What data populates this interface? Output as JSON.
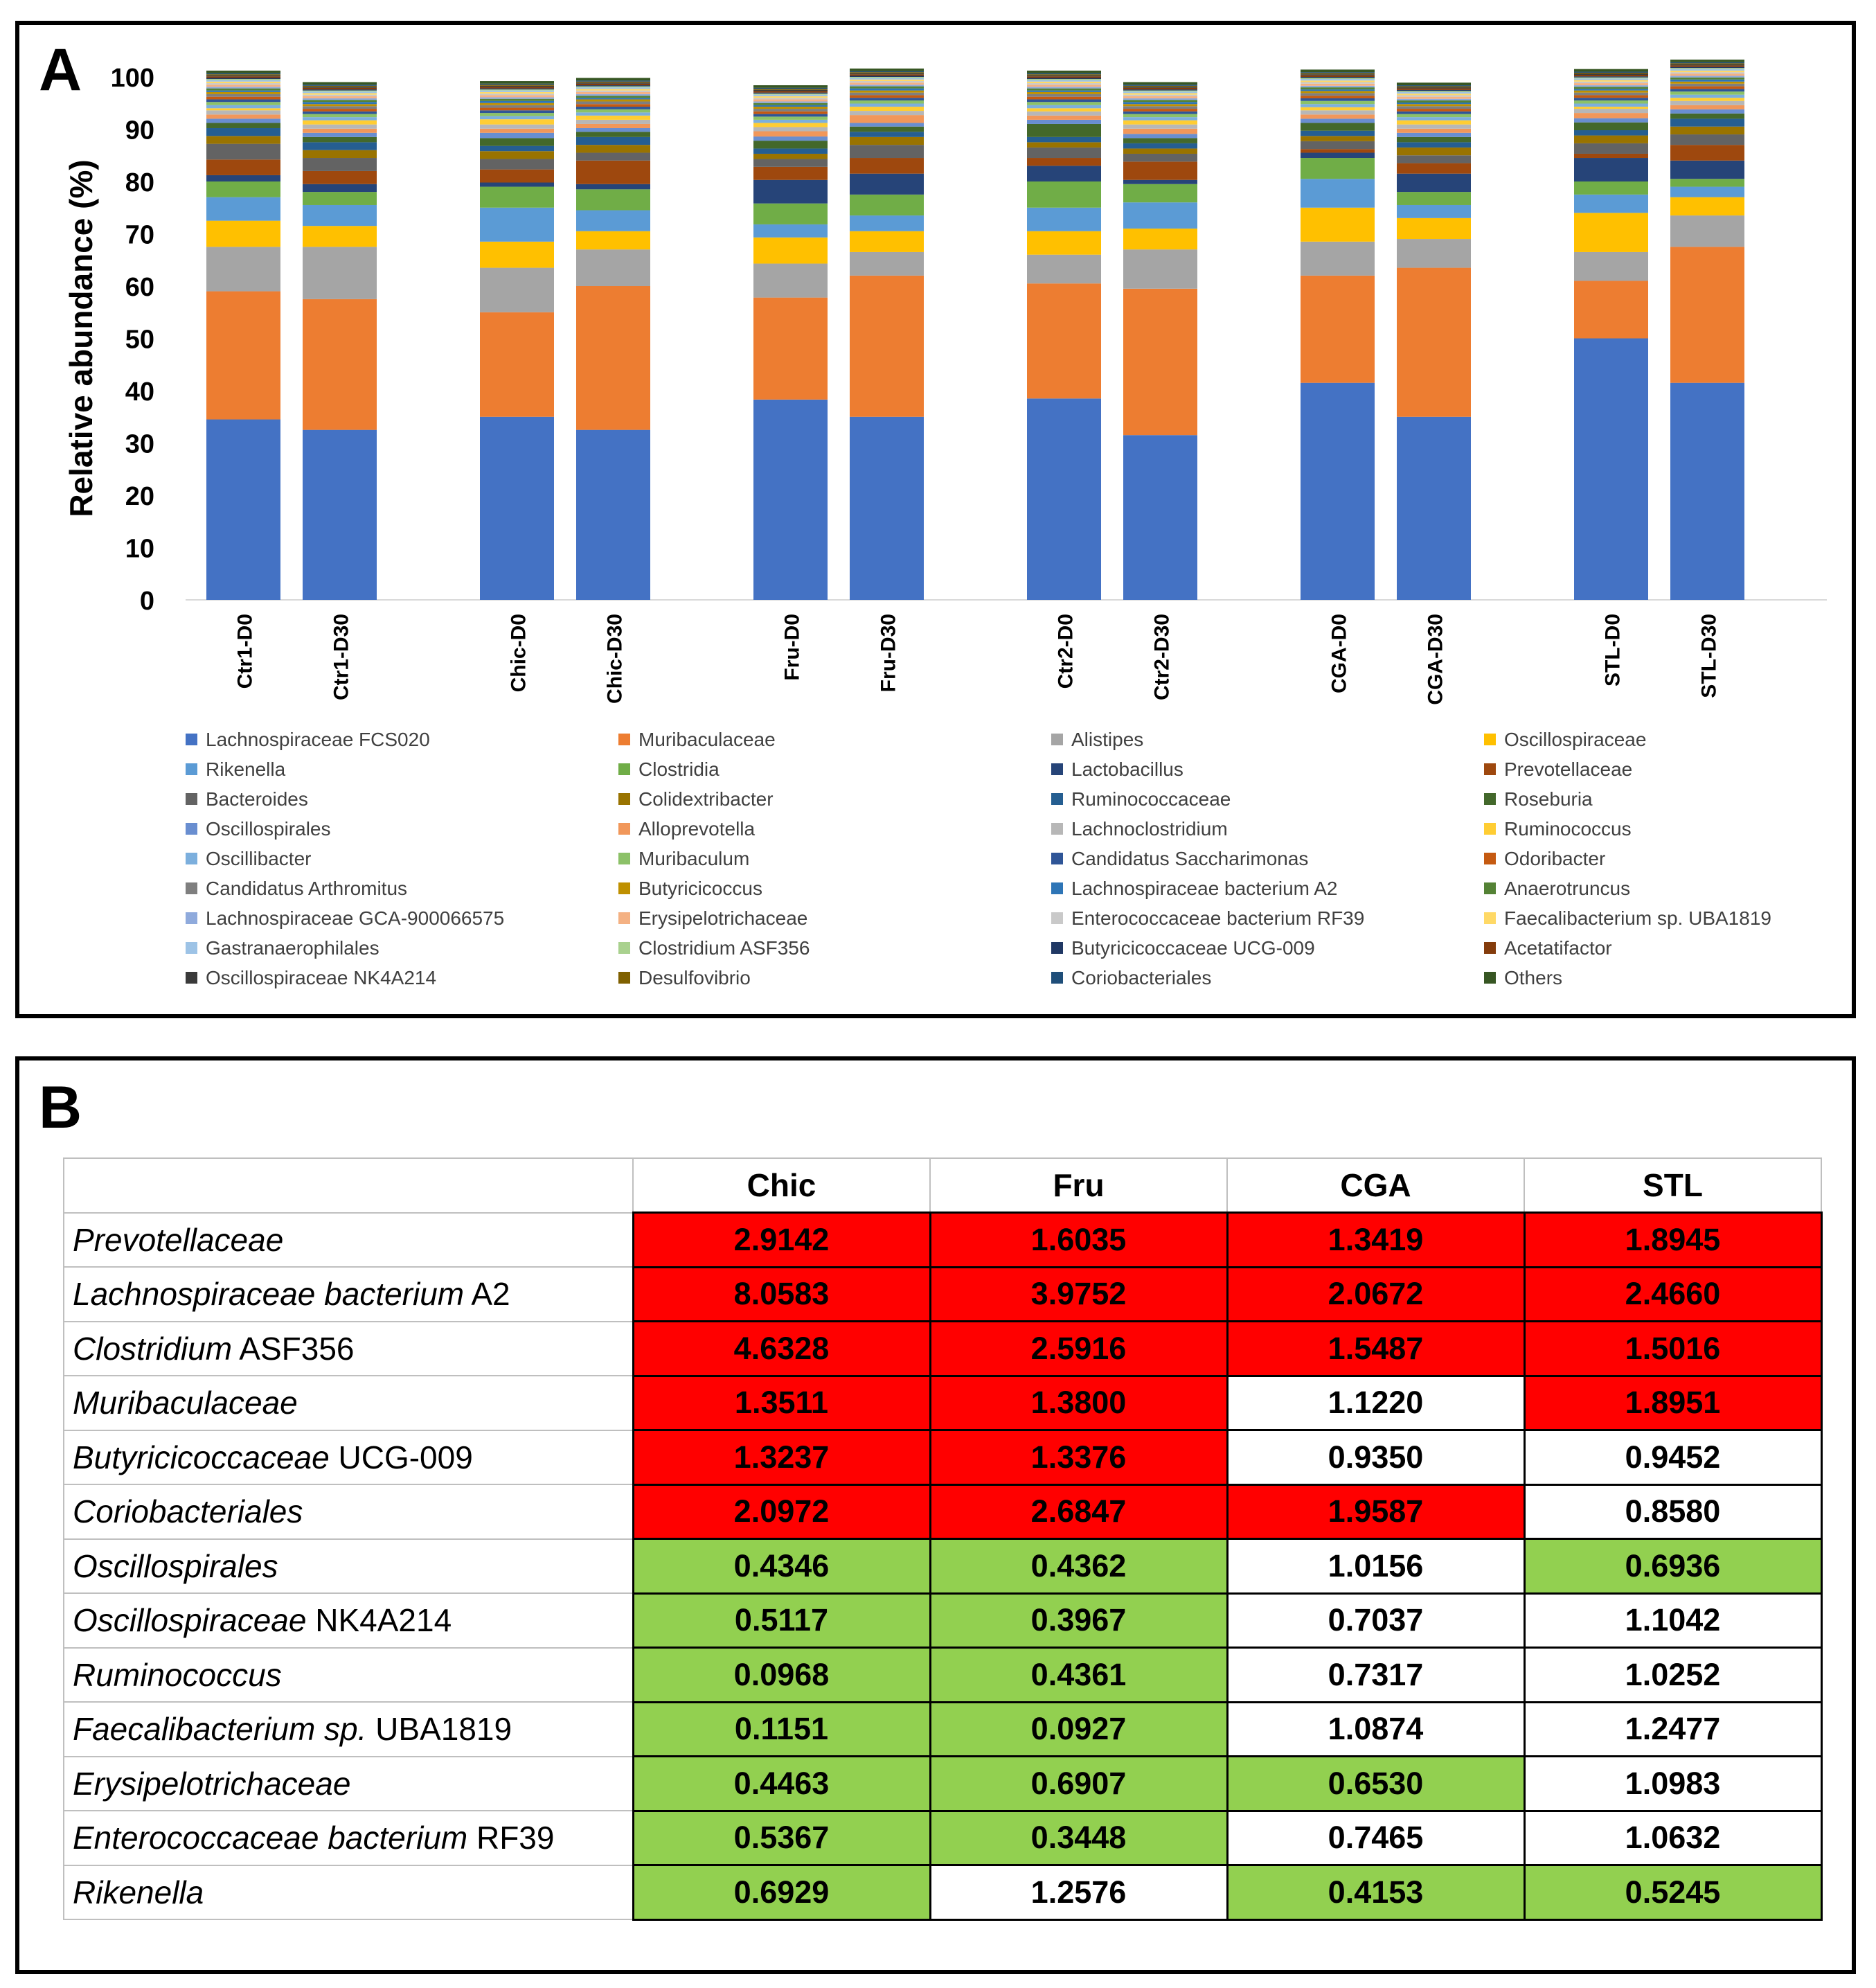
{
  "panelA": {
    "label": "A",
    "chart_data": {
      "type": "bar",
      "stacked": true,
      "ylabel": "Relative abundance (%)",
      "xlabel": "",
      "ylim": [
        0,
        100
      ],
      "yticks": [
        "0",
        "10",
        "20",
        "30",
        "40",
        "50",
        "60",
        "70",
        "80",
        "90",
        "100"
      ],
      "grid": false,
      "legend_position": "bottom",
      "categories": [
        "Ctr1-D0",
        "Ctr1-D30",
        "Chic-D0",
        "Chic-D30",
        "Fru-D0",
        "Fru-D30",
        "Ctr2-D0",
        "Ctr2-D30",
        "CGA-D0",
        "CGA-D30",
        "STL-D0",
        "STL-D30"
      ],
      "groups": [
        [
          "Ctr1-D0",
          "Ctr1-D30"
        ],
        [
          "Chic-D0",
          "Chic-D30"
        ],
        [
          "Fru-D0",
          "Fru-D30"
        ],
        [
          "Ctr2-D0",
          "Ctr2-D30"
        ],
        [
          "CGA-D0",
          "CGA-D30"
        ],
        [
          "STL-D0",
          "STL-D30"
        ]
      ],
      "series": [
        {
          "name": "Lachnospiraceae FCS020",
          "color": "#4472C4",
          "values": [
            34.5,
            32.5,
            35,
            32.5,
            38.3,
            35,
            38.5,
            31.5,
            41.5,
            35,
            50,
            41.5
          ]
        },
        {
          "name": "Muribaculaceae",
          "color": "#ED7D31",
          "values": [
            24.5,
            25,
            20,
            27.5,
            19.5,
            27,
            22,
            28,
            20.5,
            28.5,
            11,
            26
          ]
        },
        {
          "name": "Alistipes",
          "color": "#A5A5A5",
          "values": [
            8.5,
            10,
            8.5,
            7,
            6.5,
            4.5,
            5.5,
            7.5,
            6.5,
            5.5,
            5.5,
            6
          ]
        },
        {
          "name": "Oscillospiraceae",
          "color": "#FFC000",
          "values": [
            5,
            4,
            5,
            3.5,
            5,
            4,
            4.5,
            4,
            6.5,
            4,
            7.5,
            3.5
          ]
        },
        {
          "name": "Rikenella",
          "color": "#5B9BD5",
          "values": [
            4.5,
            4,
            6.5,
            4,
            2.5,
            3,
            4.5,
            5,
            5.5,
            2.5,
            3.5,
            2
          ]
        },
        {
          "name": "Clostridia",
          "color": "#70AD47",
          "values": [
            3,
            2.5,
            4,
            4,
            4,
            4,
            5,
            3.5,
            4,
            2.5,
            2.5,
            1.5
          ]
        },
        {
          "name": "Lactobacillus",
          "color": "#264478",
          "values": [
            1.2,
            1.5,
            0.8,
            1,
            4.5,
            4,
            3,
            0.8,
            1,
            3.5,
            4.5,
            3.5
          ]
        },
        {
          "name": "Prevotellaceae",
          "color": "#9E480E",
          "values": [
            3,
            2.5,
            2.5,
            4.5,
            2.5,
            3,
            1.5,
            3.5,
            0.7,
            2,
            0.8,
            3
          ]
        },
        {
          "name": "Bacteroides",
          "color": "#636363",
          "values": [
            3,
            2.5,
            2,
            1.5,
            1.5,
            2.5,
            2,
            1.5,
            1.5,
            1.5,
            2,
            2
          ]
        },
        {
          "name": "Colidextribacter",
          "color": "#997300",
          "values": [
            1.5,
            1.5,
            1.5,
            1.5,
            1,
            1.5,
            1,
            1,
            1,
            1.5,
            1.5,
            1.5
          ]
        },
        {
          "name": "Ruminococcaceae",
          "color": "#255E91",
          "values": [
            1.5,
            1.5,
            1,
            1.5,
            1,
            1,
            1,
            1,
            1,
            1,
            1,
            1.5
          ]
        },
        {
          "name": "Roseburia",
          "color": "#43682B",
          "values": [
            1,
            1,
            1.5,
            1,
            1.5,
            1,
            2.5,
            1,
            1.5,
            1,
            1.5,
            1
          ]
        },
        {
          "name": "Oscillospirales",
          "color": "#698ED0",
          "values": [
            0.8,
            0.8,
            1,
            0.7,
            0.8,
            0.7,
            0.8,
            0.8,
            0.8,
            0.8,
            0.8,
            0.8
          ]
        },
        {
          "name": "Alloprevotella",
          "color": "#F1975A",
          "values": [
            0.8,
            0.8,
            0.8,
            0.8,
            1,
            1.5,
            0.8,
            1,
            0.8,
            0.8,
            1,
            0.8
          ]
        },
        {
          "name": "Lachnoclostridium",
          "color": "#B7B7B7",
          "values": [
            0.8,
            0.8,
            0.8,
            0.8,
            0.8,
            0.8,
            0.8,
            0.8,
            0.8,
            0.8,
            0.8,
            0.8
          ]
        },
        {
          "name": "Ruminococcus",
          "color": "#FFCD33",
          "values": [
            0.4,
            0.8,
            1,
            0.8,
            0.8,
            0.8,
            0.6,
            0.8,
            0.6,
            0.8,
            0.4,
            0.6
          ]
        },
        {
          "name": "Oscillibacter",
          "color": "#7CAFDD",
          "values": [
            0.6,
            0.6,
            0.6,
            0.6,
            0.6,
            0.6,
            0.6,
            0.6,
            0.6,
            0.6,
            0.6,
            0.6
          ]
        },
        {
          "name": "Muribaculum",
          "color": "#8CC168",
          "values": [
            0.6,
            0.6,
            0.6,
            0.6,
            0.6,
            0.6,
            0.6,
            0.6,
            0.6,
            0.6,
            0.6,
            0.6
          ]
        },
        {
          "name": "Candidatus Saccharimonas",
          "color": "#2F5597",
          "values": [
            0.5,
            0.5,
            0.5,
            0.5,
            0.5,
            0.5,
            0.5,
            0.5,
            0.5,
            0.5,
            0.5,
            0.5
          ]
        },
        {
          "name": "Odoribacter",
          "color": "#C55A11",
          "values": [
            0.5,
            0.5,
            0.5,
            0.5,
            0.5,
            0.5,
            0.5,
            0.5,
            0.5,
            0.5,
            0.5,
            0.5
          ]
        },
        {
          "name": "Candidatus Arthromitus",
          "color": "#7F7F7F",
          "values": [
            0.5,
            0.5,
            0.5,
            0.5,
            0.5,
            0.5,
            0.5,
            0.5,
            0.5,
            0.5,
            0.5,
            0.5
          ]
        },
        {
          "name": "Butyricicoccus",
          "color": "#BF9000",
          "values": [
            0.4,
            0.4,
            0.4,
            0.4,
            0.4,
            0.4,
            0.4,
            0.4,
            0.4,
            0.4,
            0.4,
            0.4
          ]
        },
        {
          "name": "Lachnospiraceae bacterium A2",
          "color": "#2E75B6",
          "values": [
            0.3,
            0.4,
            0.4,
            0.3,
            0.3,
            0.4,
            0.3,
            0.4,
            0.3,
            0.3,
            0.3,
            0.4
          ]
        },
        {
          "name": "Anaerotruncus",
          "color": "#548235",
          "values": [
            0.4,
            0.4,
            0.4,
            0.4,
            0.4,
            0.4,
            0.4,
            0.4,
            0.4,
            0.4,
            0.4,
            0.4
          ]
        },
        {
          "name": "Lachnospiraceae GCA-900066575",
          "color": "#8FAADC",
          "values": [
            0.3,
            0.3,
            0.3,
            0.3,
            0.3,
            0.3,
            0.3,
            0.3,
            0.3,
            0.3,
            0.3,
            0.3
          ]
        },
        {
          "name": "Erysipelotrichaceae",
          "color": "#F4B183",
          "values": [
            0.4,
            0.4,
            0.4,
            0.4,
            0.4,
            0.4,
            0.4,
            0.4,
            0.4,
            0.4,
            0.4,
            0.4
          ]
        },
        {
          "name": "Enterococcaceae bacterium RF39",
          "color": "#C9C9C9",
          "values": [
            0.3,
            0.3,
            0.3,
            0.3,
            0.3,
            0.3,
            0.3,
            0.3,
            0.3,
            0.3,
            0.3,
            0.3
          ]
        },
        {
          "name": "Faecalibacterium sp. UBA1819",
          "color": "#FFD966",
          "values": [
            0.3,
            0.3,
            0.3,
            0.3,
            0.3,
            0.3,
            0.3,
            0.3,
            0.3,
            0.3,
            0.3,
            0.3
          ]
        },
        {
          "name": "Gastranaerophilales",
          "color": "#9DC3E6",
          "values": [
            0.3,
            0.3,
            0.3,
            0.3,
            0.3,
            0.3,
            0.3,
            0.3,
            0.3,
            0.3,
            0.3,
            0.3
          ]
        },
        {
          "name": "Clostridium ASF356",
          "color": "#A9D18E",
          "values": [
            0.2,
            0.2,
            0.2,
            0.2,
            0.2,
            0.2,
            0.2,
            0.2,
            0.2,
            0.2,
            0.2,
            0.2
          ]
        },
        {
          "name": "Butyricicoccaceae UCG-009",
          "color": "#203864",
          "values": [
            0.2,
            0.2,
            0.2,
            0.2,
            0.2,
            0.2,
            0.2,
            0.2,
            0.2,
            0.2,
            0.2,
            0.2
          ]
        },
        {
          "name": "Acetatifactor",
          "color": "#843C0C",
          "values": [
            0.3,
            0.3,
            0.3,
            0.3,
            0.3,
            0.3,
            0.3,
            0.3,
            0.3,
            0.3,
            0.3,
            0.3
          ]
        },
        {
          "name": "Oscillospiraceae NK4A214",
          "color": "#3A3A3A",
          "values": [
            0.2,
            0.2,
            0.2,
            0.2,
            0.2,
            0.2,
            0.2,
            0.2,
            0.2,
            0.2,
            0.2,
            0.2
          ]
        },
        {
          "name": "Desulfovibrio",
          "color": "#7F6000",
          "values": [
            0.2,
            0.2,
            0.2,
            0.2,
            0.2,
            0.2,
            0.2,
            0.2,
            0.2,
            0.2,
            0.2,
            0.2
          ]
        },
        {
          "name": "Coriobacteriales",
          "color": "#1F4E79",
          "values": [
            0.2,
            0.2,
            0.2,
            0.2,
            0.2,
            0.2,
            0.2,
            0.2,
            0.2,
            0.2,
            0.2,
            0.2
          ]
        },
        {
          "name": "Others",
          "color": "#375623",
          "values": [
            0.5,
            0.5,
            0.5,
            0.5,
            0.5,
            0.5,
            0.5,
            0.5,
            0.5,
            0.5,
            0.5,
            0.5
          ]
        }
      ]
    }
  },
  "panelB": {
    "label": "B",
    "columns": [
      "Chic",
      "Fru",
      "CGA",
      "STL"
    ],
    "colors": {
      "up": "#FF0000",
      "down": "#92D050",
      "neutral": "#FFFFFF"
    },
    "rows": [
      {
        "italic": "Prevotellaceae",
        "suffix": "",
        "values": [
          "2.9142",
          "1.6035",
          "1.3419",
          "1.8945"
        ],
        "status": [
          "up",
          "up",
          "up",
          "up"
        ]
      },
      {
        "italic": "Lachnospiraceae bacterium",
        "suffix": " A2",
        "values": [
          "8.0583",
          "3.9752",
          "2.0672",
          "2.4660"
        ],
        "status": [
          "up",
          "up",
          "up",
          "up"
        ]
      },
      {
        "italic": "Clostridium",
        "suffix": " ASF356",
        "values": [
          "4.6328",
          "2.5916",
          "1.5487",
          "1.5016"
        ],
        "status": [
          "up",
          "up",
          "up",
          "up"
        ]
      },
      {
        "italic": "Muribaculaceae",
        "suffix": "",
        "values": [
          "1.3511",
          "1.3800",
          "1.1220",
          "1.8951"
        ],
        "status": [
          "up",
          "up",
          "neutral",
          "up"
        ]
      },
      {
        "italic": "Butyricicoccaceae",
        "suffix": " UCG-009",
        "values": [
          "1.3237",
          "1.3376",
          "0.9350",
          "0.9452"
        ],
        "status": [
          "up",
          "up",
          "neutral",
          "neutral"
        ]
      },
      {
        "italic": "Coriobacteriales",
        "suffix": "",
        "values": [
          "2.0972",
          "2.6847",
          "1.9587",
          "0.8580"
        ],
        "status": [
          "up",
          "up",
          "up",
          "neutral"
        ]
      },
      {
        "italic": "Oscillospirales",
        "suffix": "",
        "values": [
          "0.4346",
          "0.4362",
          "1.0156",
          "0.6936"
        ],
        "status": [
          "down",
          "down",
          "neutral",
          "down"
        ]
      },
      {
        "italic": "Oscillospiraceae",
        "suffix": " NK4A214",
        "values": [
          "0.5117",
          "0.3967",
          "0.7037",
          "1.1042"
        ],
        "status": [
          "down",
          "down",
          "neutral",
          "neutral"
        ]
      },
      {
        "italic": "Ruminococcus",
        "suffix": "",
        "values": [
          "0.0968",
          "0.4361",
          "0.7317",
          "1.0252"
        ],
        "status": [
          "down",
          "down",
          "neutral",
          "neutral"
        ]
      },
      {
        "italic": "Faecalibacterium sp.",
        "suffix": " UBA1819",
        "values": [
          "0.1151",
          "0.0927",
          "1.0874",
          "1.2477"
        ],
        "status": [
          "down",
          "down",
          "neutral",
          "neutral"
        ]
      },
      {
        "italic": "Erysipelotrichaceae",
        "suffix": "",
        "values": [
          "0.4463",
          "0.6907",
          "0.6530",
          "1.0983"
        ],
        "status": [
          "down",
          "down",
          "down",
          "neutral"
        ]
      },
      {
        "italic": "Enterococcaceae bacterium",
        "suffix": " RF39",
        "values": [
          "0.5367",
          "0.3448",
          "0.7465",
          "1.0632"
        ],
        "status": [
          "down",
          "down",
          "neutral",
          "neutral"
        ]
      },
      {
        "italic": "Rikenella",
        "suffix": "",
        "values": [
          "0.6929",
          "1.2576",
          "0.4153",
          "0.5245"
        ],
        "status": [
          "down",
          "neutral",
          "down",
          "down"
        ]
      }
    ]
  }
}
